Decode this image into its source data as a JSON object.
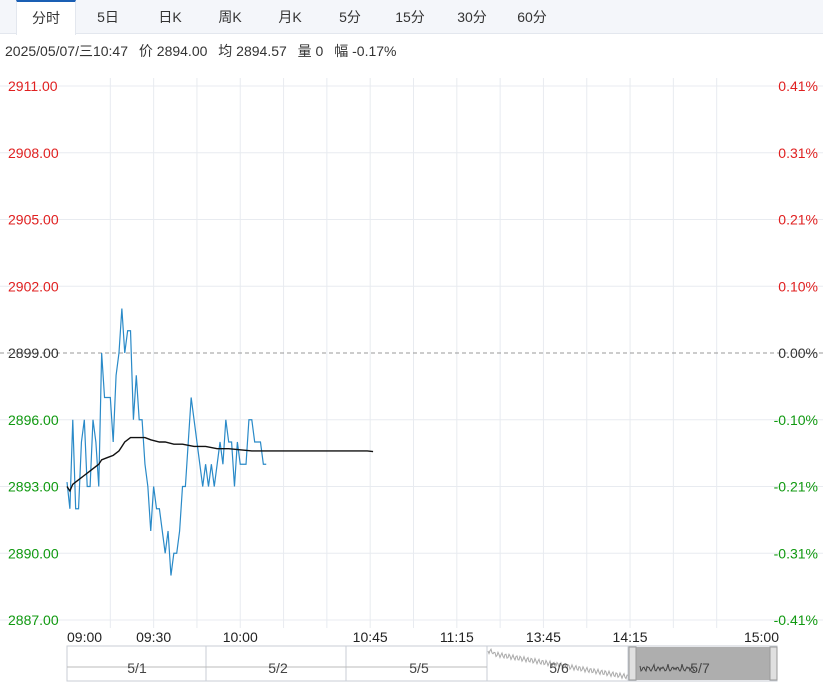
{
  "tabs": [
    {
      "label": "分时",
      "active": true
    },
    {
      "label": "5日",
      "active": false
    },
    {
      "label": "日K",
      "active": false
    },
    {
      "label": "周K",
      "active": false
    },
    {
      "label": "月K",
      "active": false
    },
    {
      "label": "5分",
      "active": false
    },
    {
      "label": "15分",
      "active": false
    },
    {
      "label": "30分",
      "active": false
    },
    {
      "label": "60分",
      "active": false
    }
  ],
  "info": {
    "datetime": "2025/05/07/三10:47",
    "price": "价 2894.00",
    "average": "均 2894.57",
    "volume": "量 0",
    "change": "幅 -0.17%"
  },
  "colors": {
    "up": "#e02020",
    "down": "#109910",
    "neutral": "#333333",
    "price_line": "#2a8ac8",
    "avg_line": "#111111",
    "grid": "#e8ebf0"
  },
  "chart_data": {
    "type": "line",
    "prev_close": 2899.0,
    "ylim": [
      2887.0,
      2911.0
    ],
    "y_ticks": [
      "2911.00",
      "2908.00",
      "2905.00",
      "2902.00",
      "2899.00",
      "2896.00",
      "2893.00",
      "2890.00",
      "2887.00"
    ],
    "y_tick_values": [
      2911,
      2908,
      2905,
      2902,
      2899,
      2896,
      2893,
      2890,
      2887
    ],
    "pct_ticks": [
      "0.41%",
      "0.31%",
      "0.21%",
      "0.10%",
      "0.00%",
      "-0.10%",
      "-0.21%",
      "-0.31%",
      "-0.41%"
    ],
    "x_ticks": [
      "09:00",
      "09:30",
      "10:00",
      "10:45",
      "11:15",
      "13:45",
      "14:15",
      "15:00"
    ],
    "x_tick_index": [
      0,
      30,
      60,
      105,
      135,
      165,
      195,
      240
    ],
    "session_minutes": 240,
    "series": [
      {
        "values": [
          2893.2,
          2892,
          2896,
          2892,
          2892,
          2895,
          2896,
          2893,
          2893,
          2896,
          2895,
          2893,
          2899,
          2897,
          2897,
          2897,
          2895,
          2898,
          2899,
          2901,
          2899,
          2900,
          2900,
          2896,
          2898,
          2896,
          2896,
          2894,
          2893,
          2891,
          2893,
          2892,
          2892,
          2891,
          2890,
          2891,
          2889,
          2890,
          2890,
          2891,
          2893,
          2893,
          2895,
          2897,
          2896,
          2895,
          2894,
          2893,
          2894,
          2893,
          2894,
          2893,
          2894,
          2895,
          2894,
          2896,
          2895,
          2895,
          2893,
          2895,
          2894,
          2894,
          2894,
          2896,
          2896,
          2895,
          2895,
          2895,
          2894,
          2894
        ],
        "times_minutes": [
          0,
          1,
          2,
          3,
          4,
          5,
          6,
          7,
          8,
          9,
          10,
          11,
          12,
          13,
          14,
          15,
          16,
          17,
          18,
          19,
          20,
          21,
          22,
          23,
          24,
          25,
          26,
          27,
          28,
          29,
          30,
          31,
          32,
          33,
          34,
          35,
          36,
          37,
          38,
          39,
          40,
          41,
          42,
          43,
          44,
          45,
          46,
          47,
          48,
          49,
          50,
          51,
          52,
          53,
          54,
          55,
          56,
          57,
          58,
          59,
          60,
          61,
          62,
          63,
          64,
          65,
          66,
          67,
          68,
          69
        ]
      },
      {
        "values": [
          2893.0,
          2892.8,
          2893.1,
          2893.3,
          2893.5,
          2893.7,
          2893.9,
          2894.0,
          2894.2,
          2894.3,
          2894.4,
          2894.6,
          2894.8,
          2895.0,
          2895.2,
          2895.2,
          2895.2,
          2895.2,
          2895.1,
          2895.0,
          2895.0,
          2894.9,
          2894.9,
          2894.8,
          2894.8,
          2894.7,
          2894.7,
          2894.65,
          2894.6,
          2894.6,
          2894.6,
          2894.6,
          2894.6,
          2894.6,
          2894.6,
          2894.57
        ],
        "times_minutes": [
          0,
          1,
          2,
          4,
          6,
          8,
          10,
          11,
          12,
          14,
          16,
          18,
          19,
          20,
          22,
          24,
          25,
          27,
          29,
          32,
          34,
          37,
          40,
          44,
          48,
          52,
          56,
          60,
          64,
          72,
          80,
          88,
          96,
          100,
          104,
          106
        ]
      }
    ]
  },
  "navigator": {
    "labels": [
      "5/1",
      "5/2",
      "5/5",
      "5/6",
      "5/7"
    ]
  }
}
